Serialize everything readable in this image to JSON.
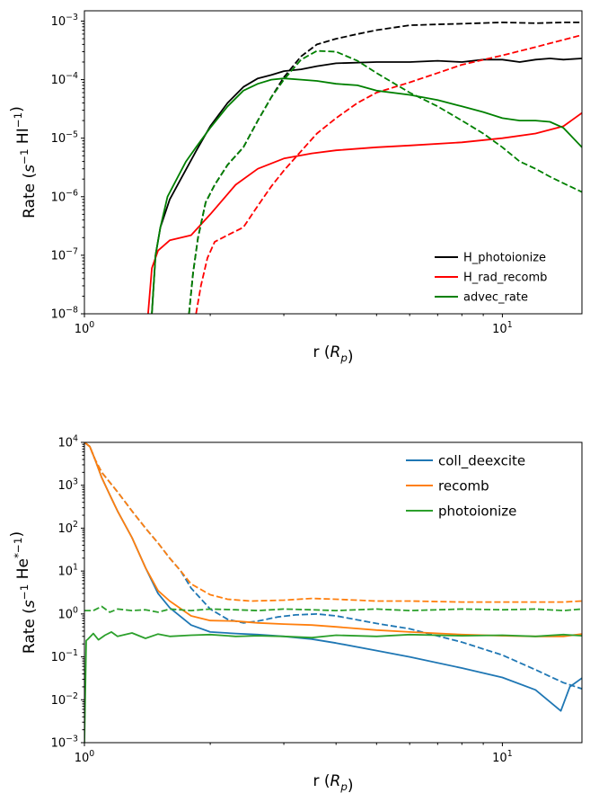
{
  "chart_data": [
    {
      "type": "line",
      "xscale": "log",
      "yscale": "log",
      "xlim": [
        1.0,
        15.5
      ],
      "ylim": [
        1e-08,
        0.0015
      ],
      "xlabel": "r ($R_p$)",
      "ylabel": "Rate ($s^{-1}$ HI$^{-1}$)",
      "xticks": [
        {
          "value": 1,
          "label": "10^0"
        },
        {
          "value": 10,
          "label": "10^1"
        }
      ],
      "yticks": [
        {
          "value": 1e-08,
          "label": "10^-8"
        },
        {
          "value": 1e-07,
          "label": "10^-7"
        },
        {
          "value": 1e-06,
          "label": "10^-6"
        },
        {
          "value": 1e-05,
          "label": "10^-5"
        },
        {
          "value": 0.0001,
          "label": "10^-4"
        },
        {
          "value": 0.001,
          "label": "10^-3"
        }
      ],
      "legend_position": "lower right",
      "legend": [
        {
          "name": "H_photoionize",
          "color": "#000000"
        },
        {
          "name": "H_rad_recomb",
          "color": "#ff0000"
        },
        {
          "name": "advec_rate",
          "color": "#008000"
        }
      ],
      "series": [
        {
          "name": "H_photoionize",
          "style": "solid",
          "color": "#000000",
          "x": [
            1.45,
            1.48,
            1.52,
            1.6,
            1.7,
            1.85,
            2.0,
            2.2,
            2.4,
            2.6,
            2.8,
            3.0,
            3.3,
            3.6,
            4.0,
            5.0,
            6.0,
            7.0,
            8.0,
            9.0,
            10.0,
            11.0,
            12.0,
            13.0,
            14.0,
            15.5
          ],
          "y": [
            1e-08,
            1e-07,
            3e-07,
            9e-07,
            2e-06,
            6e-06,
            1.6e-05,
            4e-05,
            7.5e-05,
            0.000105,
            0.00012,
            0.00014,
            0.00015,
            0.00017,
            0.00019,
            0.0002,
            0.0002,
            0.00021,
            0.0002,
            0.00022,
            0.00022,
            0.0002,
            0.00022,
            0.00023,
            0.00022,
            0.00023
          ]
        },
        {
          "name": "H_photoionize",
          "style": "dashed",
          "color": "#000000",
          "x": [
            1.78,
            1.82,
            1.87,
            1.95,
            2.05,
            2.2,
            2.4,
            2.6,
            2.8,
            3.0,
            3.3,
            3.6,
            4.0,
            4.5,
            5.0,
            6.0,
            7.0,
            8.0,
            10.0,
            12.0,
            14.0,
            15.5
          ],
          "y": [
            1e-08,
            5e-08,
            2e-07,
            8e-07,
            1.6e-06,
            3.5e-06,
            7e-06,
            2e-05,
            5e-05,
            0.00011,
            0.00025,
            0.0004,
            0.0005,
            0.0006,
            0.0007,
            0.00085,
            0.00088,
            0.0009,
            0.00095,
            0.00092,
            0.00095,
            0.00095
          ]
        },
        {
          "name": "H_rad_recomb",
          "style": "solid",
          "color": "#ff0000",
          "x": [
            1.42,
            1.45,
            1.5,
            1.6,
            1.8,
            2.0,
            2.3,
            2.6,
            3.0,
            3.5,
            4.0,
            5.0,
            6.0,
            8.0,
            10.0,
            12.0,
            14.0,
            15.5
          ],
          "y": [
            1e-08,
            6e-08,
            1.2e-07,
            1.8e-07,
            2.2e-07,
            5e-07,
            1.6e-06,
            3e-06,
            4.5e-06,
            5.5e-06,
            6.2e-06,
            7e-06,
            7.5e-06,
            8.5e-06,
            1e-05,
            1.2e-05,
            1.6e-05,
            2.7e-05
          ]
        },
        {
          "name": "H_rad_recomb",
          "style": "dashed",
          "color": "#ff0000",
          "x": [
            1.85,
            1.9,
            1.97,
            2.05,
            2.2,
            2.4,
            2.6,
            2.8,
            3.0,
            3.3,
            3.6,
            4.0,
            4.5,
            5.0,
            6.0,
            7.0,
            8.0,
            10.0,
            12.0,
            15.5
          ],
          "y": [
            1e-08,
            3e-08,
            9e-08,
            1.7e-07,
            2.2e-07,
            3e-07,
            7e-07,
            1.5e-06,
            2.8e-06,
            6e-06,
            1.2e-05,
            2.2e-05,
            4e-05,
            6e-05,
            9e-05,
            0.00013,
            0.00018,
            0.00026,
            0.00036,
            0.00058
          ]
        },
        {
          "name": "advec_rate",
          "style": "solid",
          "color": "#008000",
          "x": [
            1.45,
            1.48,
            1.52,
            1.58,
            1.65,
            1.75,
            1.85,
            2.0,
            2.2,
            2.4,
            2.6,
            2.8,
            3.0,
            3.3,
            3.6,
            4.0,
            4.5,
            5.0,
            6.0,
            7.0,
            8.0,
            9.0,
            10.0,
            11.0,
            12.0,
            13.0,
            14.0,
            15.5
          ],
          "y": [
            1e-08,
            1e-07,
            3e-07,
            1e-06,
            1.8e-06,
            4e-06,
            7e-06,
            1.5e-05,
            3.5e-05,
            6.5e-05,
            8.5e-05,
            0.0001,
            0.000105,
            0.0001,
            9.5e-05,
            8.5e-05,
            8e-05,
            6.5e-05,
            5.5e-05,
            4.5e-05,
            3.5e-05,
            2.8e-05,
            2.2e-05,
            2e-05,
            2e-05,
            1.9e-05,
            1.5e-05,
            7e-06
          ]
        },
        {
          "name": "advec_rate",
          "style": "dashed",
          "color": "#008000",
          "x": [
            1.78,
            1.82,
            1.87,
            1.95,
            2.05,
            2.2,
            2.4,
            2.6,
            2.8,
            3.0,
            3.3,
            3.6,
            4.0,
            4.5,
            5.0,
            6.0,
            7.0,
            8.0,
            9.0,
            10.0,
            11.0,
            12.0,
            13.0,
            14.0,
            15.5
          ],
          "y": [
            1e-08,
            5e-08,
            2e-07,
            8e-07,
            1.6e-06,
            3.5e-06,
            7e-06,
            2e-05,
            5e-05,
            0.0001,
            0.00022,
            0.00031,
            0.0003,
            0.00021,
            0.00013,
            6e-05,
            3.5e-05,
            2e-05,
            1.2e-05,
            7e-06,
            4e-06,
            3e-06,
            2.2e-06,
            1.7e-06,
            1.2e-06
          ]
        }
      ]
    },
    {
      "type": "line",
      "xscale": "log",
      "yscale": "log",
      "xlim": [
        1.0,
        15.5
      ],
      "ylim": [
        0.001,
        10000
      ],
      "xlabel": "r ($R_p$)",
      "ylabel": "Rate ($s^{-1}$ He$^{*-1}$)",
      "xticks": [
        {
          "value": 1,
          "label": "10^0"
        },
        {
          "value": 10,
          "label": "10^1"
        }
      ],
      "yticks": [
        {
          "value": 0.001,
          "label": "10^-3"
        },
        {
          "value": 0.01,
          "label": "10^-2"
        },
        {
          "value": 0.1,
          "label": "10^-1"
        },
        {
          "value": 1,
          "label": "10^0"
        },
        {
          "value": 10,
          "label": "10^1"
        },
        {
          "value": 100,
          "label": "10^2"
        },
        {
          "value": 1000,
          "label": "10^3"
        },
        {
          "value": 10000,
          "label": "10^4"
        }
      ],
      "legend_position": "upper right",
      "legend": [
        {
          "name": "coll_deexcite",
          "color": "#1f77b4"
        },
        {
          "name": "recomb",
          "color": "#ff7f0e"
        },
        {
          "name": "photoionize",
          "color": "#2ca02c"
        }
      ],
      "series": [
        {
          "name": "coll_deexcite",
          "style": "solid",
          "color": "#1f77b4",
          "x": [
            1.0,
            1.03,
            1.06,
            1.1,
            1.15,
            1.2,
            1.3,
            1.4,
            1.5,
            1.6,
            1.8,
            2.0,
            2.3,
            2.6,
            3.0,
            3.5,
            4.0,
            5.0,
            6.0,
            8.0,
            10.0,
            12.0,
            13.8,
            14.5,
            15.5
          ],
          "y": [
            10000,
            8000,
            4000,
            1500,
            600,
            250,
            60,
            12,
            3.0,
            1.4,
            0.55,
            0.38,
            0.35,
            0.33,
            0.3,
            0.26,
            0.21,
            0.14,
            0.1,
            0.055,
            0.033,
            0.017,
            0.0055,
            0.02,
            0.032
          ]
        },
        {
          "name": "coll_deexcite",
          "style": "dashed",
          "color": "#1f77b4",
          "x": [
            1.0,
            1.03,
            1.06,
            1.1,
            1.2,
            1.3,
            1.4,
            1.5,
            1.6,
            1.7,
            1.8,
            2.0,
            2.2,
            2.4,
            2.6,
            2.9,
            3.2,
            3.6,
            4.0,
            5.0,
            6.0,
            8.0,
            10.0,
            12.0,
            14.0,
            15.5
          ],
          "y": [
            10000,
            8000,
            4000,
            2000,
            700,
            250,
            100,
            45,
            20,
            10,
            4,
            1.3,
            0.75,
            0.62,
            0.68,
            0.85,
            0.95,
            1.0,
            0.9,
            0.6,
            0.45,
            0.22,
            0.11,
            0.05,
            0.025,
            0.018
          ]
        },
        {
          "name": "recomb",
          "style": "solid",
          "color": "#ff7f0e",
          "x": [
            1.0,
            1.03,
            1.06,
            1.1,
            1.15,
            1.2,
            1.3,
            1.4,
            1.5,
            1.6,
            1.8,
            2.0,
            2.3,
            2.6,
            3.0,
            3.5,
            4.0,
            5.0,
            6.0,
            8.0,
            10.0,
            12.0,
            14.0,
            15.5
          ],
          "y": [
            10000,
            8000,
            4000,
            1500,
            600,
            250,
            60,
            12,
            3.5,
            2.0,
            0.9,
            0.7,
            0.68,
            0.62,
            0.58,
            0.55,
            0.5,
            0.42,
            0.38,
            0.33,
            0.31,
            0.3,
            0.3,
            0.34
          ]
        },
        {
          "name": "recomb",
          "style": "dashed",
          "color": "#ff7f0e",
          "x": [
            1.0,
            1.03,
            1.06,
            1.1,
            1.2,
            1.3,
            1.4,
            1.5,
            1.6,
            1.7,
            1.8,
            2.0,
            2.2,
            2.5,
            3.0,
            3.5,
            4.0,
            5.0,
            6.0,
            8.0,
            10.0,
            12.0,
            14.0,
            15.5
          ],
          "y": [
            10000,
            8000,
            4000,
            2000,
            700,
            250,
            100,
            45,
            20,
            10,
            5,
            2.8,
            2.2,
            2.0,
            2.1,
            2.3,
            2.2,
            2.0,
            2.0,
            1.9,
            1.9,
            1.9,
            1.9,
            2.0
          ]
        },
        {
          "name": "photoionize",
          "style": "solid",
          "color": "#2ca02c",
          "x": [
            1.0,
            1.01,
            1.02,
            1.05,
            1.08,
            1.12,
            1.16,
            1.2,
            1.3,
            1.4,
            1.5,
            1.6,
            1.8,
            2.0,
            2.3,
            2.6,
            3.0,
            3.5,
            4.0,
            5.0,
            6.0,
            8.0,
            10.0,
            12.0,
            14.0,
            15.5
          ],
          "y": [
            0.001,
            0.24,
            0.26,
            0.35,
            0.25,
            0.32,
            0.38,
            0.3,
            0.36,
            0.27,
            0.34,
            0.3,
            0.32,
            0.33,
            0.3,
            0.31,
            0.3,
            0.28,
            0.32,
            0.3,
            0.33,
            0.31,
            0.32,
            0.3,
            0.33,
            0.31
          ]
        },
        {
          "name": "photoionize",
          "style": "dashed",
          "color": "#2ca02c",
          "x": [
            1.0,
            1.05,
            1.1,
            1.15,
            1.2,
            1.3,
            1.4,
            1.5,
            1.6,
            1.8,
            2.0,
            2.3,
            2.6,
            3.0,
            3.5,
            4.0,
            5.0,
            6.0,
            8.0,
            10.0,
            12.0,
            14.0,
            15.5
          ],
          "y": [
            1.2,
            1.2,
            1.5,
            1.1,
            1.3,
            1.2,
            1.25,
            1.1,
            1.3,
            1.2,
            1.3,
            1.25,
            1.2,
            1.3,
            1.25,
            1.2,
            1.3,
            1.2,
            1.3,
            1.25,
            1.3,
            1.2,
            1.3
          ]
        }
      ]
    }
  ]
}
